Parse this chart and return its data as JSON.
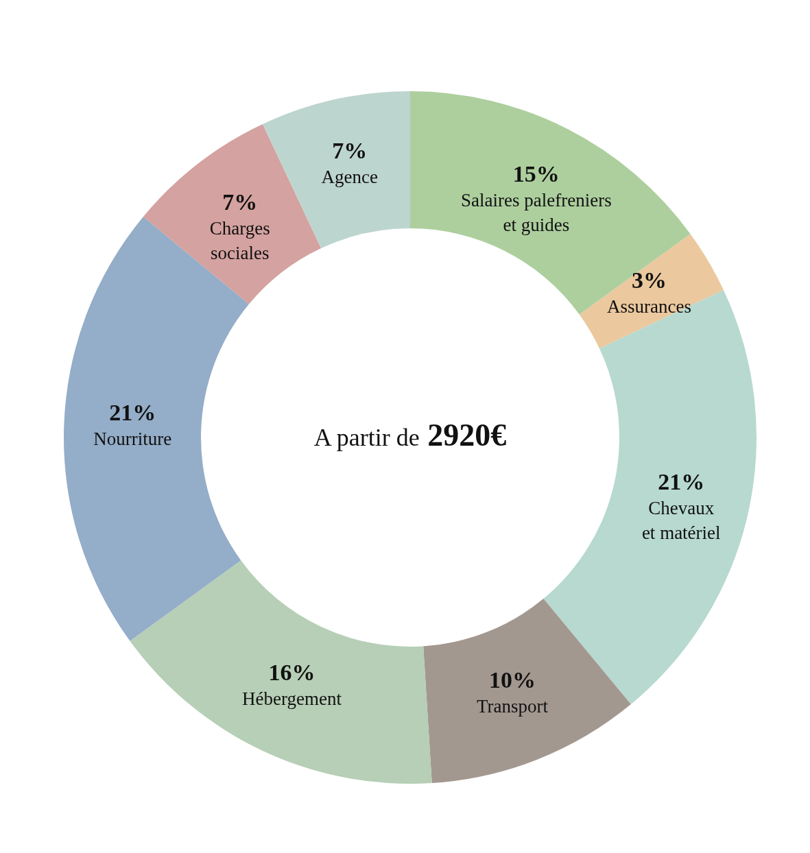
{
  "chart_data": {
    "type": "donut",
    "categories": [
      "Salaires palefreniers et guides",
      "Assurances",
      "Chevaux et matériel",
      "Transport",
      "Hébergement",
      "Nourriture",
      "Charges sociales",
      "Agence"
    ],
    "values": [
      15,
      3,
      21,
      10,
      16,
      21,
      7,
      7
    ],
    "value_labels": [
      "15%",
      "3%",
      "21%",
      "10%",
      "16%",
      "21%",
      "7%",
      "7%"
    ],
    "colors": [
      "#adcf9e",
      "#ebc89e",
      "#b7d9cf",
      "#a39890",
      "#b6cfb6",
      "#94adc8",
      "#d4a2a0",
      "#bdd5cf"
    ],
    "annotations": [
      "A partir de",
      "2920€"
    ]
  }
}
